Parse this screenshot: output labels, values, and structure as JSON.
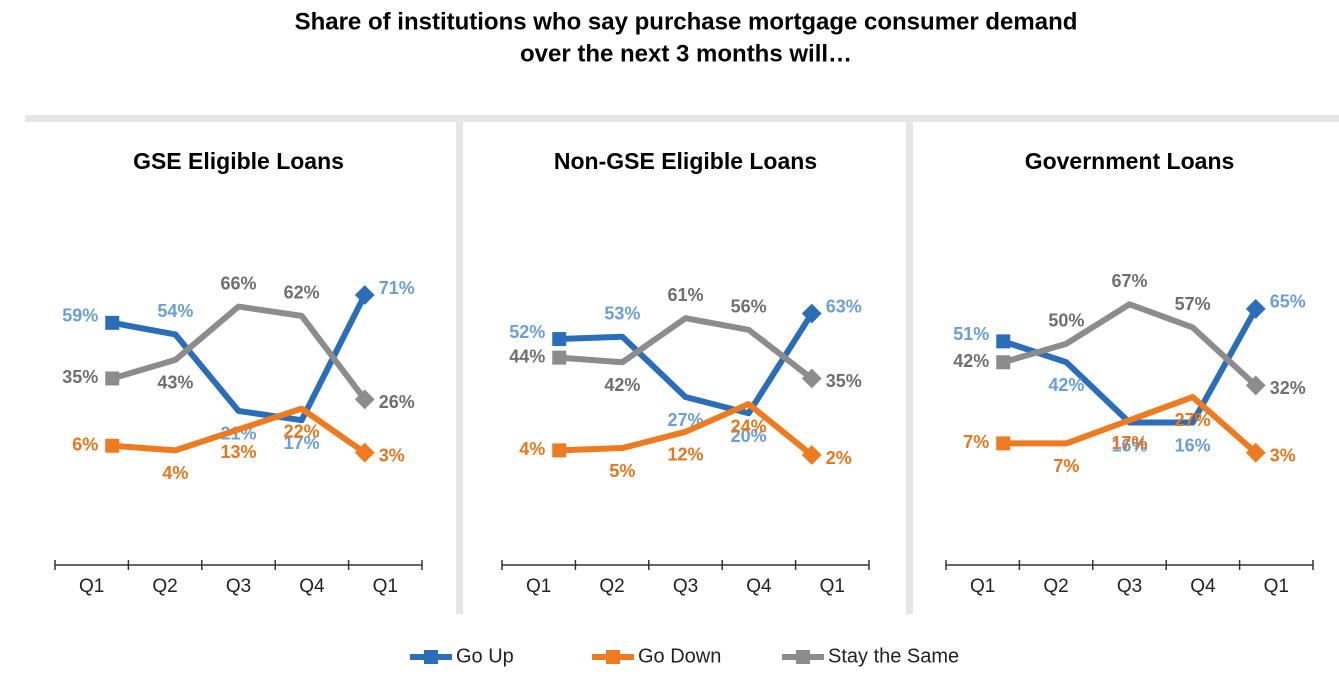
{
  "title": [
    "Share of institutions who say purchase mortgage consumer demand",
    "over the next 3 months will…"
  ],
  "chart_data": [
    {
      "type": "line",
      "title": "GSE Eligible Loans",
      "categories": [
        "Q1",
        "Q2",
        "Q3",
        "Q4",
        "Q1"
      ],
      "series": [
        {
          "name": "Go Up",
          "color": "#2a6ebb",
          "label_color": "#6a9fd8",
          "values": [
            59,
            54,
            21,
            17,
            71
          ],
          "value_labels": [
            "59%",
            "54%",
            "21%",
            "17%",
            "71%"
          ]
        },
        {
          "name": "Go Down",
          "color": "#ee7b1f",
          "label_color": "#e8761c",
          "values": [
            6,
            4,
            13,
            22,
            3
          ],
          "value_labels": [
            "6%",
            "4%",
            "13%",
            "22%",
            "3%"
          ]
        },
        {
          "name": "Stay the Same",
          "color": "#8c8c8c",
          "label_color": "#6f6f6f",
          "values": [
            35,
            43,
            66,
            62,
            26
          ],
          "value_labels": [
            "35%",
            "43%",
            "66%",
            "62%",
            "26%"
          ]
        }
      ]
    },
    {
      "type": "line",
      "title": "Non-GSE Eligible Loans",
      "categories": [
        "Q1",
        "Q2",
        "Q3",
        "Q4",
        "Q1"
      ],
      "series": [
        {
          "name": "Go Up",
          "color": "#2a6ebb",
          "label_color": "#6a9fd8",
          "values": [
            52,
            53,
            27,
            20,
            63
          ],
          "value_labels": [
            "52%",
            "53%",
            "27%",
            "20%",
            "63%"
          ]
        },
        {
          "name": "Go Down",
          "color": "#ee7b1f",
          "label_color": "#e8761c",
          "values": [
            4,
            5,
            12,
            24,
            2
          ],
          "value_labels": [
            "4%",
            "5%",
            "12%",
            "24%",
            "2%"
          ]
        },
        {
          "name": "Stay the Same",
          "color": "#8c8c8c",
          "label_color": "#6f6f6f",
          "values": [
            44,
            42,
            61,
            56,
            35
          ],
          "value_labels": [
            "44%",
            "42%",
            "61%",
            "56%",
            "35%"
          ]
        }
      ]
    },
    {
      "type": "line",
      "title": "Government Loans",
      "categories": [
        "Q1",
        "Q2",
        "Q3",
        "Q4",
        "Q1"
      ],
      "series": [
        {
          "name": "Go Up",
          "color": "#2a6ebb",
          "label_color": "#6a9fd8",
          "values": [
            51,
            42,
            16,
            16,
            65
          ],
          "value_labels": [
            "51%",
            "42%",
            "16%",
            "16%",
            "65%"
          ]
        },
        {
          "name": "Go Down",
          "color": "#ee7b1f",
          "label_color": "#e8761c",
          "values": [
            7,
            7,
            17,
            27,
            3
          ],
          "value_labels": [
            "7%",
            "7%",
            "17%",
            "27%",
            "3%"
          ]
        },
        {
          "name": "Stay the Same",
          "color": "#8c8c8c",
          "label_color": "#6f6f6f",
          "values": [
            42,
            50,
            67,
            57,
            32
          ],
          "value_labels": [
            "42%",
            "50%",
            "67%",
            "57%",
            "32%"
          ]
        }
      ]
    }
  ]
}
